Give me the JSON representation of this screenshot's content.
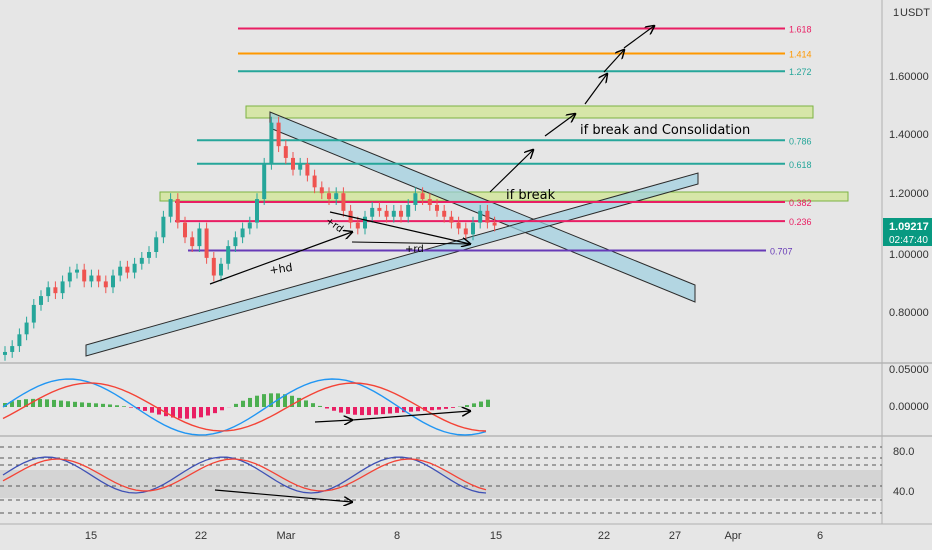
{
  "price_axis": {
    "currency": "USDT",
    "ticks": [
      "1.60000",
      "1.40000",
      "1.20000",
      "1.00000",
      "0.80000"
    ],
    "top_tick": "1"
  },
  "current_price": {
    "value": "1.09217",
    "countdown": "02:47:40",
    "color": "#089981"
  },
  "macd_axis": {
    "ticks": [
      "0.05000",
      "0.00000"
    ]
  },
  "stoch_axis": {
    "ticks": [
      "80.0",
      "40.0"
    ]
  },
  "time_axis": {
    "labels": [
      "15",
      "22",
      "Mar",
      "8",
      "15",
      "22",
      "27",
      "Apr",
      "6"
    ]
  },
  "fib_levels": [
    {
      "label": "1.618",
      "price": 1.76,
      "color": "#e91e63"
    },
    {
      "label": "1.414",
      "price": 1.675,
      "color": "#ff9800"
    },
    {
      "label": "1.272",
      "price": 1.615,
      "color": "#26a69a"
    },
    {
      "label": "0.786",
      "price": 1.38,
      "color": "#26a69a"
    },
    {
      "label": "0.618",
      "price": 1.3,
      "color": "#26a69a"
    },
    {
      "label": "0.382",
      "price": 1.17,
      "color": "#e91e63"
    },
    {
      "label": "0.236",
      "price": 1.105,
      "color": "#e91e63"
    },
    {
      "label": "0.707",
      "price": 1.005,
      "color": "#673ab7"
    }
  ],
  "annotations": {
    "if_break": "if break",
    "if_break_consolidation": "if break and Consolidation",
    "hd_label": "+hd",
    "rd_label_1": "+rd",
    "rd_label_2": "+rd"
  },
  "chart_data": {
    "type": "candlestick",
    "symbol_currency": "USDT",
    "ylim": [
      0.6,
      1.8
    ],
    "last_price": 1.09217,
    "x_labels": [
      "15",
      "22",
      "Mar",
      "8",
      "15",
      "22",
      "27",
      "Apr",
      "6"
    ],
    "price_path": [
      0.66,
      0.68,
      0.72,
      0.76,
      0.82,
      0.85,
      0.88,
      0.86,
      0.9,
      0.93,
      0.94,
      0.9,
      0.92,
      0.9,
      0.88,
      0.92,
      0.95,
      0.93,
      0.96,
      0.98,
      1.0,
      1.05,
      1.12,
      1.18,
      1.1,
      1.05,
      1.02,
      1.08,
      0.98,
      0.92,
      0.96,
      1.02,
      1.05,
      1.08,
      1.1,
      1.18,
      1.3,
      1.44,
      1.36,
      1.32,
      1.28,
      1.3,
      1.26,
      1.22,
      1.2,
      1.18,
      1.2,
      1.14,
      1.1,
      1.08,
      1.12,
      1.15,
      1.14,
      1.12,
      1.14,
      1.12,
      1.16,
      1.2,
      1.18,
      1.16,
      1.14,
      1.12,
      1.1,
      1.08,
      1.06,
      1.1,
      1.14,
      1.1,
      1.09
    ],
    "macd_ylim": [
      -0.04,
      0.06
    ],
    "stoch_levels": [
      80.0,
      40.0
    ],
    "fib_levels": [
      {
        "level": "1.618",
        "price": 1.76
      },
      {
        "level": "1.414",
        "price": 1.675
      },
      {
        "level": "1.272",
        "price": 1.615
      },
      {
        "level": "0.786",
        "price": 1.38
      },
      {
        "level": "0.618",
        "price": 1.3
      },
      {
        "level": "0.382",
        "price": 1.17
      },
      {
        "level": "0.236",
        "price": 1.105
      },
      {
        "level": "0.707",
        "price": 1.005
      }
    ]
  }
}
